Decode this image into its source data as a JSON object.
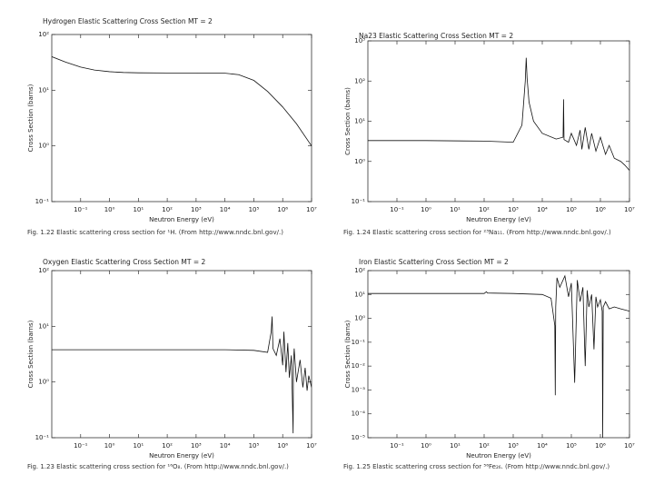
{
  "chart_data": [
    {
      "type": "line",
      "title": "Hydrogen Elastic Scattering Cross Section MT = 2",
      "xlabel": "Neutron Energy (eV)",
      "ylabel": "Cross Section (barns)",
      "caption": "Fig. 1.22 Elastic scattering cross section for ¹H. (From http://www.nndc.bnl.gov/.)",
      "xscale": "log",
      "yscale": "log",
      "xlim": [
        0.01,
        10000000
      ],
      "ylim": [
        0.1,
        100
      ],
      "xticks": [
        {
          "value": 0.1,
          "label": "10⁻¹"
        },
        {
          "value": 1,
          "label": "10⁰"
        },
        {
          "value": 10,
          "label": "10¹"
        },
        {
          "value": 100,
          "label": "10²"
        },
        {
          "value": 1000,
          "label": "10³"
        },
        {
          "value": 10000,
          "label": "10⁴"
        },
        {
          "value": 100000,
          "label": "10⁵"
        },
        {
          "value": 1000000,
          "label": "10⁶"
        },
        {
          "value": 10000000,
          "label": "10⁷"
        }
      ],
      "yticks": [
        {
          "value": 0.1,
          "label": "10⁻¹"
        },
        {
          "value": 1,
          "label": "10⁰"
        },
        {
          "value": 10,
          "label": "10¹"
        },
        {
          "value": 100,
          "label": "10²"
        }
      ],
      "series": [
        {
          "color": "#111111",
          "x": [
            0.01,
            0.03,
            0.1,
            0.3,
            1,
            3,
            10,
            100,
            1000,
            10000,
            30000,
            100000,
            300000,
            1000000,
            3000000,
            10000000
          ],
          "values": [
            40,
            32,
            26,
            23,
            21.5,
            20.8,
            20.5,
            20.4,
            20.4,
            20.2,
            19,
            15,
            9.5,
            5,
            2.5,
            1.0
          ]
        }
      ]
    },
    {
      "type": "line",
      "title": "Na23 Elastic Scattering Cross Section MT = 2",
      "xlabel": "Neutron Energy (eV)",
      "ylabel": "Cross Section (barns)",
      "caption": "Fig. 1.24 Elastic scattering cross section for ²³Na₁₁. (From http://www.nndc.bnl.gov/.)",
      "xscale": "log",
      "yscale": "log",
      "xlim": [
        0.01,
        10000000
      ],
      "ylim": [
        0.1,
        1000
      ],
      "xticks": [
        {
          "value": 0.1,
          "label": "10⁻¹"
        },
        {
          "value": 1,
          "label": "10⁰"
        },
        {
          "value": 10,
          "label": "10¹"
        },
        {
          "value": 100,
          "label": "10²"
        },
        {
          "value": 1000,
          "label": "10³"
        },
        {
          "value": 10000,
          "label": "10⁴"
        },
        {
          "value": 100000,
          "label": "10⁵"
        },
        {
          "value": 1000000,
          "label": "10⁶"
        },
        {
          "value": 10000000,
          "label": "10⁷"
        }
      ],
      "yticks": [
        {
          "value": 0.1,
          "label": "10⁻¹"
        },
        {
          "value": 1,
          "label": "10⁰"
        },
        {
          "value": 10,
          "label": "10¹"
        },
        {
          "value": 100,
          "label": "10²"
        },
        {
          "value": 1000,
          "label": "10³"
        }
      ],
      "series": [
        {
          "color": "#111111",
          "x": [
            0.01,
            1,
            100,
            1000,
            2000,
            2600,
            2800,
            3000,
            3500,
            5000,
            10000,
            30000,
            52000,
            54000,
            56000,
            80000,
            100000,
            150000,
            200000,
            230000,
            300000,
            400000,
            500000,
            700000,
            1000000,
            1500000,
            2000000,
            3000000,
            5000000,
            7000000,
            10000000
          ],
          "values": [
            3.3,
            3.3,
            3.2,
            3.0,
            8,
            100,
            380,
            120,
            30,
            10,
            5,
            3.6,
            4,
            35,
            3.5,
            3,
            5,
            2.5,
            6,
            2,
            7,
            2,
            5,
            1.8,
            4,
            1.5,
            2.5,
            1.2,
            1,
            0.8,
            0.6
          ]
        }
      ]
    },
    {
      "type": "line",
      "title": "Oxygen Elastic Scattering Cross Section MT = 2",
      "xlabel": "Neutron Energy (eV)",
      "ylabel": "Cross Section (barns)",
      "caption": "Fig. 1.23 Elastic scattering cross section for ¹⁶O₈. (From http://www.nndc.bnl.gov/.)",
      "xscale": "log",
      "yscale": "log",
      "xlim": [
        0.01,
        10000000
      ],
      "ylim": [
        0.1,
        100
      ],
      "xticks": [
        {
          "value": 0.1,
          "label": "10⁻¹"
        },
        {
          "value": 1,
          "label": "10⁰"
        },
        {
          "value": 10,
          "label": "10¹"
        },
        {
          "value": 100,
          "label": "10²"
        },
        {
          "value": 1000,
          "label": "10³"
        },
        {
          "value": 10000,
          "label": "10⁴"
        },
        {
          "value": 100000,
          "label": "10⁵"
        },
        {
          "value": 1000000,
          "label": "10⁶"
        },
        {
          "value": 10000000,
          "label": "10⁷"
        }
      ],
      "yticks": [
        {
          "value": 0.1,
          "label": "10⁻¹"
        },
        {
          "value": 1,
          "label": "10⁰"
        },
        {
          "value": 10,
          "label": "10¹"
        },
        {
          "value": 100,
          "label": "10²"
        }
      ],
      "series": [
        {
          "color": "#111111",
          "x": [
            0.01,
            1,
            100,
            10000,
            100000,
            300000,
            400000,
            430000,
            460000,
            600000,
            800000,
            1000000,
            1100000,
            1300000,
            1500000,
            1700000,
            2000000,
            2300000,
            2350000,
            2500000,
            3000000,
            4000000,
            5000000,
            6000000,
            7000000,
            8000000,
            10000000
          ],
          "values": [
            3.8,
            3.8,
            3.8,
            3.8,
            3.7,
            3.4,
            8,
            15,
            4,
            3,
            6,
            2,
            8,
            1.5,
            5,
            1.2,
            3,
            0.12,
            2,
            4,
            1,
            2.5,
            0.8,
            1.8,
            0.7,
            1.3,
            0.8
          ]
        }
      ]
    },
    {
      "type": "line",
      "title": "Iron Elastic Scattering Cross Section MT = 2",
      "xlabel": "Neutron Energy (eV)",
      "ylabel": "Cross Section (barns)",
      "caption": "Fig. 1.25 Elastic scattering cross section for ⁵⁶Fe₂₆. (From http://www.nndc.bnl.gov/.)",
      "xscale": "log",
      "yscale": "log",
      "xlim": [
        0.01,
        10000000
      ],
      "ylim": [
        1e-05,
        100
      ],
      "xticks": [
        {
          "value": 0.1,
          "label": "10⁻¹"
        },
        {
          "value": 1,
          "label": "10⁰"
        },
        {
          "value": 10,
          "label": "10¹"
        },
        {
          "value": 100,
          "label": "10²"
        },
        {
          "value": 1000,
          "label": "10³"
        },
        {
          "value": 10000,
          "label": "10⁴"
        },
        {
          "value": 100000,
          "label": "10⁵"
        },
        {
          "value": 1000000,
          "label": "10⁶"
        },
        {
          "value": 10000000,
          "label": "10⁷"
        }
      ],
      "yticks": [
        {
          "value": 1e-05,
          "label": "10⁻⁵"
        },
        {
          "value": 0.0001,
          "label": "10⁻⁴"
        },
        {
          "value": 0.001,
          "label": "10⁻³"
        },
        {
          "value": 0.01,
          "label": "10⁻²"
        },
        {
          "value": 0.1,
          "label": "10⁻¹"
        },
        {
          "value": 1,
          "label": "10⁰"
        },
        {
          "value": 10,
          "label": "10¹"
        },
        {
          "value": 100,
          "label": "10²"
        }
      ],
      "series": [
        {
          "color": "#111111",
          "x": [
            0.01,
            1,
            100,
            120,
            130,
            1000,
            10000,
            20000,
            27000,
            28000,
            29000,
            32000,
            40000,
            60000,
            80000,
            100000,
            130000,
            160000,
            200000,
            250000,
            300000,
            350000,
            400000,
            500000,
            600000,
            700000,
            800000,
            1000000,
            1150000,
            1200000,
            1250000,
            1500000,
            2000000,
            3000000,
            5000000,
            10000000
          ],
          "values": [
            11,
            11,
            11,
            13,
            11.5,
            11,
            10,
            7,
            0.5,
            0.0006,
            3,
            50,
            20,
            60,
            8,
            30,
            0.002,
            40,
            5,
            20,
            0.01,
            15,
            3,
            10,
            0.05,
            8,
            3,
            6,
            2,
            1e-05,
            3,
            5,
            2.5,
            3,
            2.5,
            2
          ]
        }
      ]
    }
  ]
}
